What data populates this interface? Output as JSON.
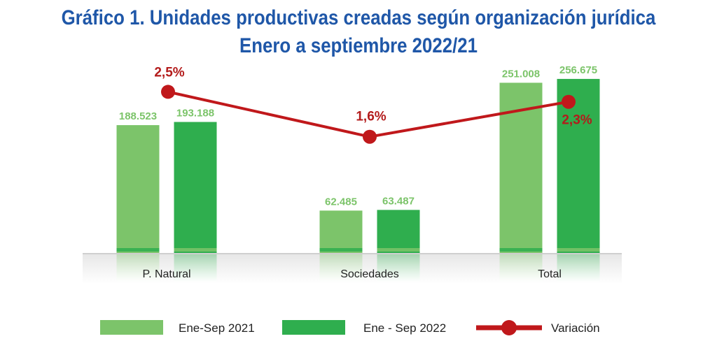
{
  "title": {
    "line1": "Gráfico 1. Unidades productivas creadas según organización jurídica",
    "line2": "Enero a septiembre 2022/21"
  },
  "chart_data": {
    "type": "bar",
    "categories": [
      "P. Natural",
      "Sociedades",
      "Total"
    ],
    "series": [
      {
        "name": "Ene-Sep 2021",
        "values": [
          188523,
          62485,
          251008
        ],
        "labels": [
          "188.523",
          "62.485",
          "251.008"
        ],
        "color": "#7cc46a"
      },
      {
        "name": "Ene - Sep 2022",
        "values": [
          193188,
          63487,
          256675
        ],
        "labels": [
          "193.188",
          "63.487",
          "256.675"
        ],
        "color": "#2fae4e"
      }
    ],
    "line_series": {
      "name": "Variación",
      "values": [
        2.5,
        1.6,
        2.3
      ],
      "labels": [
        "2,5%",
        "1,6%",
        "2,3%"
      ],
      "color": "#c0181b"
    },
    "ylim": [
      0,
      270000
    ],
    "line_ylim": [
      0,
      3.5
    ],
    "grid": false,
    "legend": "bottom"
  },
  "colors": {
    "title": "#1f57a8",
    "value_label": "#7cc46a"
  }
}
